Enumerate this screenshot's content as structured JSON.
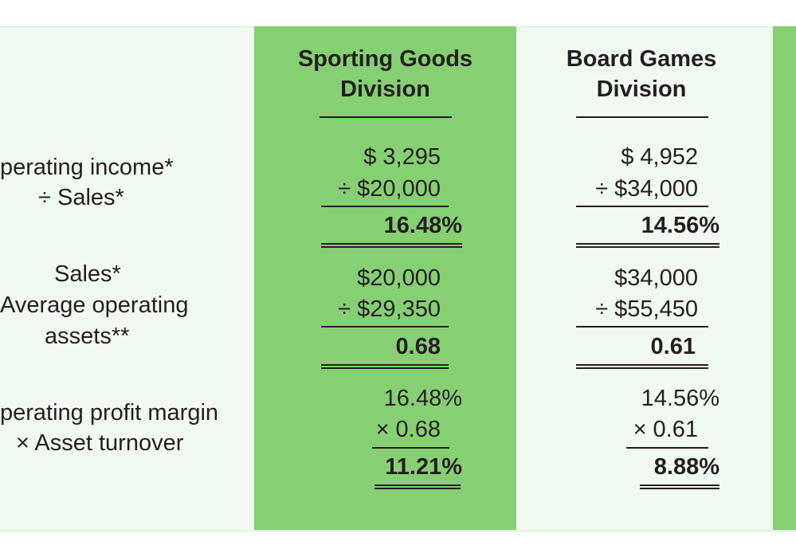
{
  "headers": {
    "col1": [
      "Sporting Goods",
      "Division"
    ],
    "col2": [
      "Board Games",
      "Division"
    ]
  },
  "rows": {
    "operating_margin": {
      "labels": [
        "perating income*",
        "÷ Sales*"
      ],
      "col1": [
        "$  3,295",
        "÷ $20,000",
        "16.48%"
      ],
      "col2": [
        "$  4,952",
        "÷ $34,000",
        "14.56%"
      ]
    },
    "asset_turnover": {
      "labels": [
        "Sales*",
        "Average operating",
        "assets**"
      ],
      "col1": [
        "$20,000",
        "÷ $29,350",
        "0.68"
      ],
      "col2": [
        "$34,000",
        "÷ $55,450",
        "0.61"
      ]
    },
    "roi": {
      "labels": [
        "perating profit margin",
        "× Asset turnover"
      ],
      "col1": [
        "16.48%",
        "× 0.68",
        "11.21%"
      ],
      "col2": [
        "14.56%",
        "× 0.61",
        "8.88%"
      ]
    }
  },
  "colors": {
    "green": "#86cf72",
    "panel": "#f1faf0",
    "text": "#231f20"
  }
}
